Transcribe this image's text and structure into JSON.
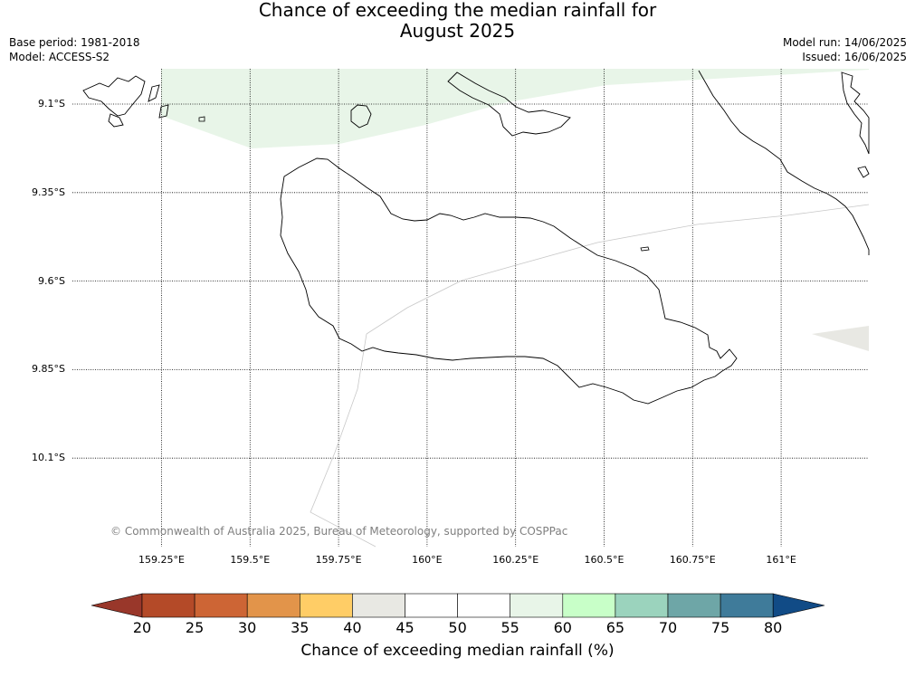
{
  "title_line1": "Chance of exceeding the median rainfall for",
  "title_line2": "August 2025",
  "meta_left": [
    "Base period: 1981-2018",
    "Model: ACCESS-S2"
  ],
  "meta_right": [
    "Model run: 14/06/2025",
    "Issued: 16/06/2025"
  ],
  "latitudes": [
    {
      "label": "9.1°S",
      "value": -9.1
    },
    {
      "label": "9.35°S",
      "value": -9.35
    },
    {
      "label": "9.6°S",
      "value": -9.6
    },
    {
      "label": "9.85°S",
      "value": -9.85
    },
    {
      "label": "10.1°S",
      "value": -10.1
    }
  ],
  "longitudes": [
    {
      "label": "159.25°E",
      "value": 159.25
    },
    {
      "label": "159.5°E",
      "value": 159.5
    },
    {
      "label": "159.75°E",
      "value": 159.75
    },
    {
      "label": "160°E",
      "value": 160.0
    },
    {
      "label": "160.25°E",
      "value": 160.25
    },
    {
      "label": "160.5°E",
      "value": 160.5
    },
    {
      "label": "160.75°E",
      "value": 160.75
    },
    {
      "label": "161°E",
      "value": 161.0
    }
  ],
  "copyright": "© Commonwealth of Australia 2025, Bureau of Meteorology, supported by COSPPac",
  "colorbar": {
    "label": "Chance of exceeding median rainfall (%)",
    "ticks": [
      "20",
      "25",
      "30",
      "35",
      "40",
      "45",
      "50",
      "55",
      "60",
      "65",
      "70",
      "75",
      "80"
    ],
    "under_color": "#99372a",
    "over_color": "#114b86",
    "colors": [
      "#b44a28",
      "#cd6535",
      "#e2944a",
      "#ffcd66",
      "#e8e8e3",
      "#ffffff",
      "#ffffff",
      "#e8f5e8",
      "#c8ffc8",
      "#9bd3bd",
      "#6ea6a7",
      "#3f7b9a"
    ]
  },
  "map_fill": {
    "green": "#e8f5e8",
    "grey": "#e8e8e3"
  }
}
